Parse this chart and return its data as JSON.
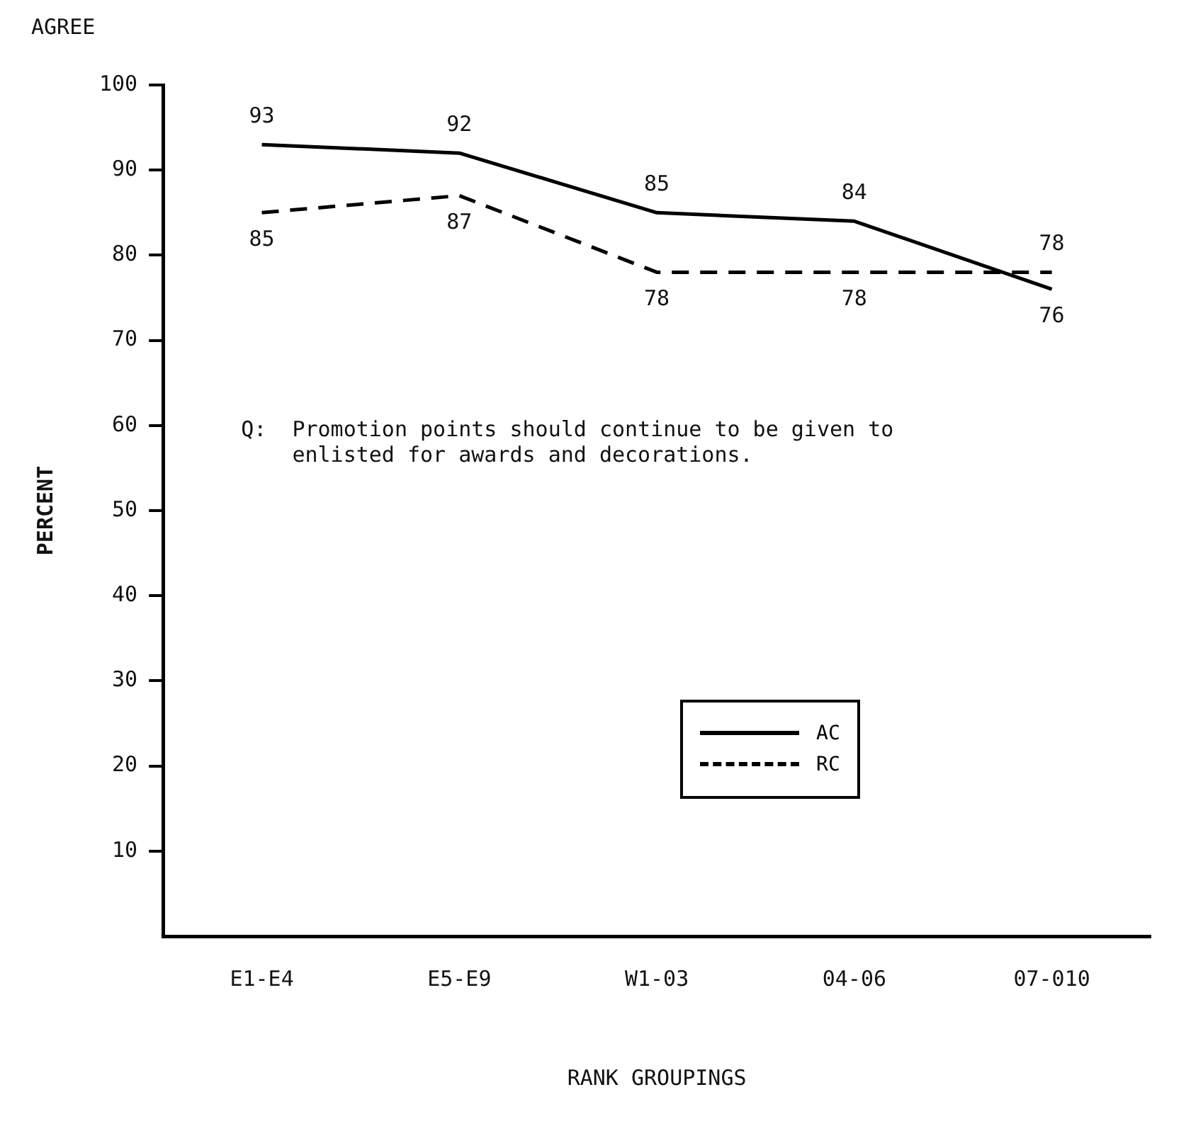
{
  "chart_data": {
    "type": "line",
    "xlabel": "RANK GROUPINGS",
    "ylabel": "PERCENT",
    "categories": [
      "E1-E4",
      "E5-E9",
      "W1-03",
      "04-06",
      "07-010"
    ],
    "series": [
      {
        "name": "AC",
        "color": "#000000",
        "line_style": "solid",
        "values": [
          93,
          92,
          85,
          84,
          76
        ]
      },
      {
        "name": "RC",
        "color": "#000000",
        "line_style": "dashed",
        "values": [
          85,
          87,
          78,
          78,
          78
        ]
      }
    ],
    "ylim": [
      0,
      100
    ],
    "yticks": [
      10,
      20,
      30,
      40,
      50,
      60,
      70,
      80,
      90,
      100
    ],
    "grid": false,
    "legend": "bottom",
    "marker": "none",
    "data_labels": true,
    "annotations": [
      "AGREE",
      "Q:  Promotion points should continue to be given to\n    enlisted for awards and decorations."
    ]
  }
}
